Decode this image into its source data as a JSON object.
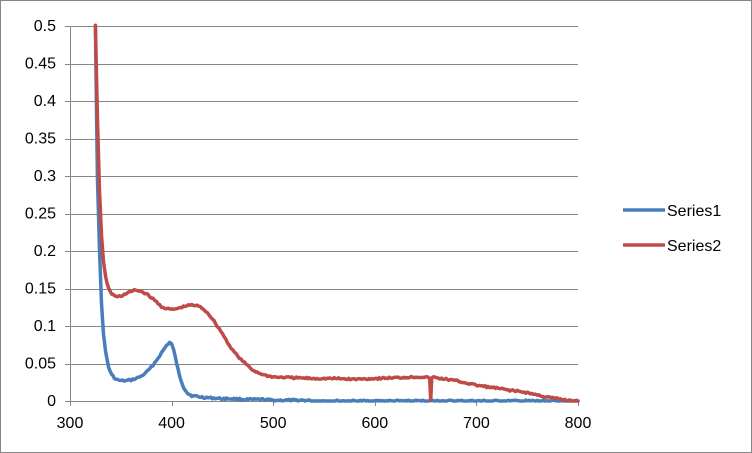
{
  "chart_data": {
    "type": "line",
    "title": "",
    "xlabel": "",
    "ylabel": "",
    "xlim": [
      300,
      800
    ],
    "ylim": [
      0,
      0.5
    ],
    "x_ticks": [
      "300",
      "400",
      "500",
      "600",
      "700",
      "800"
    ],
    "y_ticks": [
      "0",
      "0.05",
      "0.1",
      "0.15",
      "0.2",
      "0.25",
      "0.3",
      "0.35",
      "0.4",
      "0.45",
      "0.5"
    ],
    "grid": "horizontal",
    "legend_position": "right",
    "series": [
      {
        "name": "Series1",
        "color": "#4a7ebb",
        "x": [
          325,
          327,
          329,
          331,
          333,
          335,
          338,
          341,
          345,
          350,
          355,
          360,
          365,
          370,
          375,
          380,
          385,
          390,
          395,
          398,
          400,
          402,
          405,
          408,
          412,
          416,
          420,
          430,
          440,
          450,
          460,
          470,
          480,
          490,
          500,
          510,
          520,
          530,
          540,
          550,
          560,
          570,
          580,
          590,
          600,
          620,
          640,
          660,
          680,
          700,
          720,
          740,
          760,
          780,
          800
        ],
        "y": [
          0.5,
          0.3,
          0.2,
          0.13,
          0.09,
          0.065,
          0.045,
          0.035,
          0.029,
          0.027,
          0.027,
          0.028,
          0.03,
          0.033,
          0.038,
          0.045,
          0.054,
          0.064,
          0.074,
          0.078,
          0.076,
          0.068,
          0.05,
          0.032,
          0.018,
          0.01,
          0.007,
          0.005,
          0.004,
          0.003,
          0.003,
          0.002,
          0.002,
          0.002,
          0.001,
          0.001,
          0.001,
          0.001,
          0.0,
          0.0,
          0.0,
          0.0,
          0.0,
          0.0,
          0.0,
          0.0,
          0.0,
          0.0,
          0.0,
          0.0,
          0.0,
          0.0,
          0.0,
          0.0,
          0.0
        ]
      },
      {
        "name": "Series2",
        "color": "#be4b48",
        "x": [
          325,
          327,
          329,
          331,
          333,
          335,
          338,
          341,
          345,
          350,
          355,
          360,
          365,
          370,
          375,
          380,
          385,
          390,
          395,
          400,
          405,
          410,
          415,
          420,
          425,
          430,
          435,
          440,
          445,
          450,
          455,
          460,
          465,
          470,
          475,
          480,
          490,
          500,
          520,
          540,
          560,
          580,
          600,
          620,
          640,
          650,
          654,
          655,
          656,
          658,
          660,
          670,
          680,
          690,
          700,
          710,
          720,
          730,
          740,
          750,
          760,
          770,
          780,
          790,
          800
        ],
        "y": [
          0.5,
          0.38,
          0.28,
          0.22,
          0.185,
          0.165,
          0.15,
          0.143,
          0.139,
          0.14,
          0.143,
          0.146,
          0.148,
          0.146,
          0.143,
          0.138,
          0.132,
          0.126,
          0.123,
          0.122,
          0.123,
          0.125,
          0.127,
          0.128,
          0.127,
          0.124,
          0.118,
          0.11,
          0.1,
          0.09,
          0.078,
          0.068,
          0.06,
          0.053,
          0.047,
          0.041,
          0.035,
          0.032,
          0.031,
          0.03,
          0.03,
          0.029,
          0.03,
          0.031,
          0.032,
          0.032,
          0.03,
          0.001,
          0.03,
          0.032,
          0.031,
          0.029,
          0.027,
          0.024,
          0.021,
          0.019,
          0.017,
          0.015,
          0.013,
          0.011,
          0.008,
          0.005,
          0.003,
          0.001,
          0.0
        ]
      }
    ]
  }
}
